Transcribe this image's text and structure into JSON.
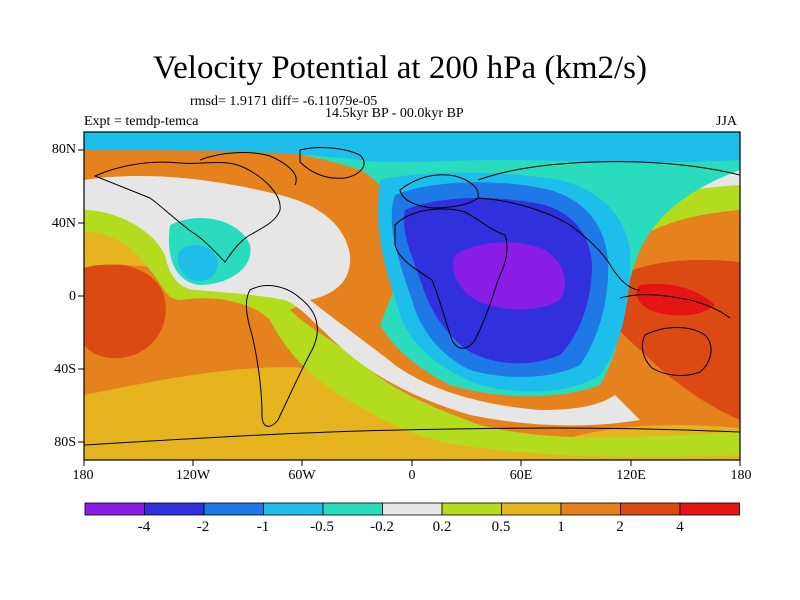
{
  "title": "Velocity Potential at 200 hPa (km2/s)",
  "stats_line": "rmsd= 1.9171 diff= -6.11079e-05",
  "period_label": "14.5kyr BP - 00.0kyr BP",
  "experiment_label": "Expt = temdp-temca",
  "season_label": "JJA",
  "lat_labels": [
    "80N",
    "40N",
    "0",
    "40S",
    "80S"
  ],
  "lon_labels": [
    "180",
    "120W",
    "60W",
    "0",
    "60E",
    "120E",
    "180"
  ],
  "colorbar": {
    "levels": [
      "-4",
      "-2",
      "-1",
      "-0.5",
      "-0.2",
      "0.2",
      "0.5",
      "1",
      "2",
      "4"
    ],
    "colors": [
      "#8a1ee6",
      "#3030dc",
      "#1e78e6",
      "#1ebeeb",
      "#2adcbe",
      "#e6e6e6",
      "#b4dc1e",
      "#e6b41e",
      "#e6821e",
      "#dc4a14",
      "#e61414"
    ]
  }
}
